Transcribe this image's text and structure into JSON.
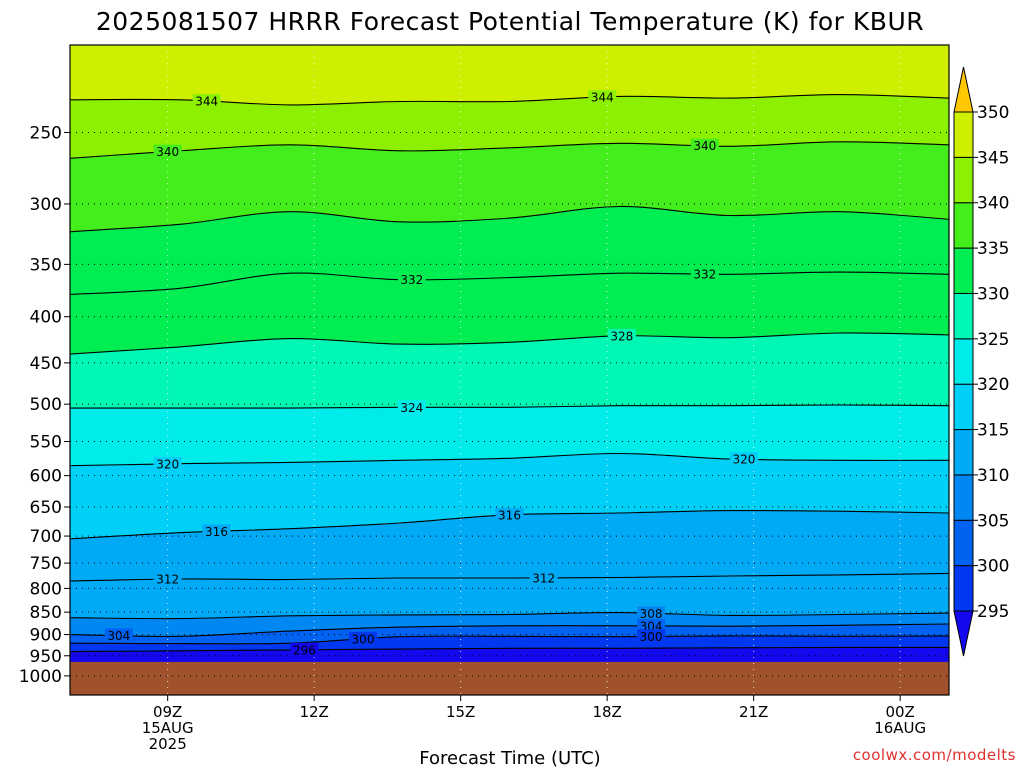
{
  "chart_data": {
    "type": "heatmap",
    "title": "2025081507 HRRR Forecast Potential Temperature (K) for KBUR",
    "xlabel": "Forecast Time (UTC)",
    "ylabel": "",
    "y_axis": {
      "scale": "log-pressure",
      "ticks": [
        250,
        300,
        350,
        400,
        450,
        500,
        550,
        600,
        650,
        700,
        750,
        800,
        850,
        900,
        950,
        1000
      ],
      "labels": [
        "250",
        "300",
        "350",
        "400",
        "450",
        "500",
        "550",
        "600",
        "650",
        "700",
        "750",
        "800",
        "850",
        "900",
        "950",
        "1000"
      ],
      "range": [
        200,
        1050
      ],
      "surface_pressure": 965
    },
    "x_axis": {
      "range_hours_after_run": [
        0,
        18
      ],
      "ticks": [
        {
          "hour": 2,
          "labels": [
            "09Z",
            "15AUG",
            "2025"
          ]
        },
        {
          "hour": 5,
          "labels": [
            "12Z"
          ]
        },
        {
          "hour": 8,
          "labels": [
            "15Z"
          ]
        },
        {
          "hour": 11,
          "labels": [
            "18Z"
          ]
        },
        {
          "hour": 14,
          "labels": [
            "21Z"
          ]
        },
        {
          "hour": 17,
          "labels": [
            "00Z",
            "16AUG"
          ]
        }
      ]
    },
    "grid": "dotted",
    "colorbar": {
      "levels": [
        295,
        300,
        305,
        310,
        315,
        320,
        325,
        330,
        335,
        340,
        345,
        350
      ],
      "labels": [
        "295",
        "300",
        "305",
        "310",
        "315",
        "320",
        "325",
        "330",
        "335",
        "340",
        "345",
        "350"
      ],
      "colors": [
        "#1408ee",
        "#0038f0",
        "#0062f0",
        "#0088f2",
        "#00aaf4",
        "#00d0f8",
        "#00ecea",
        "#00f8b4",
        "#00ee52",
        "#44ee1c",
        "#8cf000",
        "#cef000",
        "#fff200",
        "#ffc800"
      ],
      "extend": "both"
    },
    "contours": [
      {
        "value": 344,
        "pressure": [
          230,
          230,
          233,
          231,
          231,
          228,
          229,
          227,
          229
        ],
        "labels": [
          {
            "hour": 2.8,
            "text": "344"
          },
          {
            "hour": 10.9,
            "text": "344"
          }
        ]
      },
      {
        "value": 340,
        "pressure": [
          267,
          262,
          258,
          262,
          260,
          257,
          259,
          256,
          258
        ],
        "labels": [
          {
            "hour": 2.0,
            "text": "340"
          },
          {
            "hour": 13.0,
            "text": "340"
          }
        ]
      },
      {
        "value": 336,
        "pressure": [
          322,
          316,
          306,
          314,
          311,
          302,
          309,
          306,
          312
        ],
        "labels": []
      },
      {
        "value": 332,
        "pressure": [
          378,
          372,
          358,
          364,
          362,
          358,
          359,
          357,
          359
        ],
        "labels": [
          {
            "hour": 7.0,
            "text": "332"
          },
          {
            "hour": 13.0,
            "text": "332"
          }
        ]
      },
      {
        "value": 328,
        "pressure": [
          440,
          432,
          423,
          429,
          427,
          420,
          422,
          417,
          419
        ],
        "labels": [
          {
            "hour": 11.3,
            "text": "328"
          }
        ]
      },
      {
        "value": 324,
        "pressure": [
          505,
          505,
          505,
          504,
          504,
          502,
          502,
          501,
          502
        ],
        "labels": [
          {
            "hour": 7.0,
            "text": "324"
          }
        ]
      },
      {
        "value": 320,
        "pressure": [
          585,
          582,
          580,
          577,
          574,
          567,
          575,
          577,
          577
        ],
        "labels": [
          {
            "hour": 2.0,
            "text": "320"
          },
          {
            "hour": 13.8,
            "text": "320"
          }
        ]
      },
      {
        "value": 316,
        "pressure": [
          705,
          694,
          687,
          677,
          663,
          660,
          656,
          657,
          660
        ],
        "labels": [
          {
            "hour": 3.0,
            "text": "316"
          },
          {
            "hour": 9.0,
            "text": "316"
          }
        ]
      },
      {
        "value": 312,
        "pressure": [
          785,
          781,
          782,
          779,
          779,
          778,
          775,
          773,
          770
        ],
        "labels": [
          {
            "hour": 2.0,
            "text": "312"
          },
          {
            "hour": 9.7,
            "text": "312"
          }
        ]
      },
      {
        "value": 308,
        "pressure": [
          862,
          864,
          858,
          856,
          855,
          851,
          857,
          855,
          852
        ],
        "labels": [
          {
            "hour": 11.9,
            "text": "308"
          }
        ]
      },
      {
        "value": 304,
        "pressure": [
          900,
          904,
          892,
          883,
          880,
          880,
          881,
          879,
          876
        ],
        "labels": [
          {
            "hour": 1.0,
            "text": "304"
          },
          {
            "hour": 11.9,
            "text": "304"
          }
        ]
      },
      {
        "value": 300,
        "pressure": [
          920,
          921,
          920,
          905,
          904,
          905,
          903,
          904,
          903
        ],
        "labels": [
          {
            "hour": 6.0,
            "text": "300"
          },
          {
            "hour": 11.9,
            "text": "300"
          }
        ]
      },
      {
        "value": 296,
        "pressure": [
          940,
          938,
          936,
          934,
          932,
          932,
          931,
          930,
          930
        ],
        "labels": [
          {
            "hour": 4.8,
            "text": "296"
          }
        ]
      }
    ]
  },
  "credit": "coolwx.com/modelts"
}
